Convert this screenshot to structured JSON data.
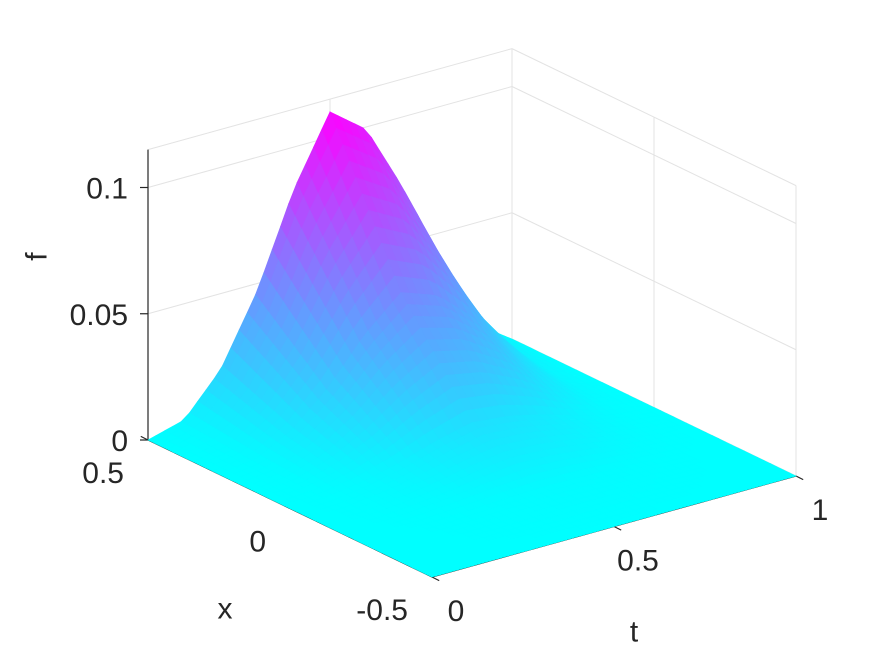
{
  "chart_data": {
    "type": "surface",
    "colormap": [
      "#00ffff",
      "#ff00ff"
    ],
    "colormap_name": "cool",
    "grid": true,
    "box": false,
    "xlabel": "t",
    "ylabel": "x",
    "zlabel": "f",
    "t_range": [
      0,
      1
    ],
    "x_range": [
      -0.5,
      0.5
    ],
    "z_range": [
      0,
      0.1
    ],
    "t_ticks": [
      {
        "value": 0,
        "label": "0"
      },
      {
        "value": 0.5,
        "label": "0.5"
      },
      {
        "value": 1,
        "label": "1"
      }
    ],
    "x_ticks": [
      {
        "value": -0.5,
        "label": "-0.5"
      },
      {
        "value": 0,
        "label": "0"
      },
      {
        "value": 0.5,
        "label": "0.5"
      }
    ],
    "z_ticks": [
      {
        "value": 0,
        "label": "0"
      },
      {
        "value": 0.05,
        "label": "0.05"
      },
      {
        "value": 0.1,
        "label": "0.1"
      }
    ],
    "peak": {
      "t": 0.5,
      "x": 0.5,
      "f": 0.11
    },
    "profile_along_t_at_x_0.5": {
      "t": [
        0,
        0.1,
        0.2,
        0.3,
        0.4,
        0.5,
        0.6,
        0.7,
        0.8,
        0.9,
        1.0
      ],
      "f": [
        0,
        0.004,
        0.02,
        0.047,
        0.083,
        0.11,
        0.099,
        0.072,
        0.036,
        0.01,
        0
      ]
    },
    "profile_along_x_at_t_0.5": {
      "x": [
        -0.5,
        -0.25,
        0,
        0.25,
        0.5
      ],
      "f": [
        0,
        0.002,
        0.014,
        0.052,
        0.11
      ]
    }
  }
}
